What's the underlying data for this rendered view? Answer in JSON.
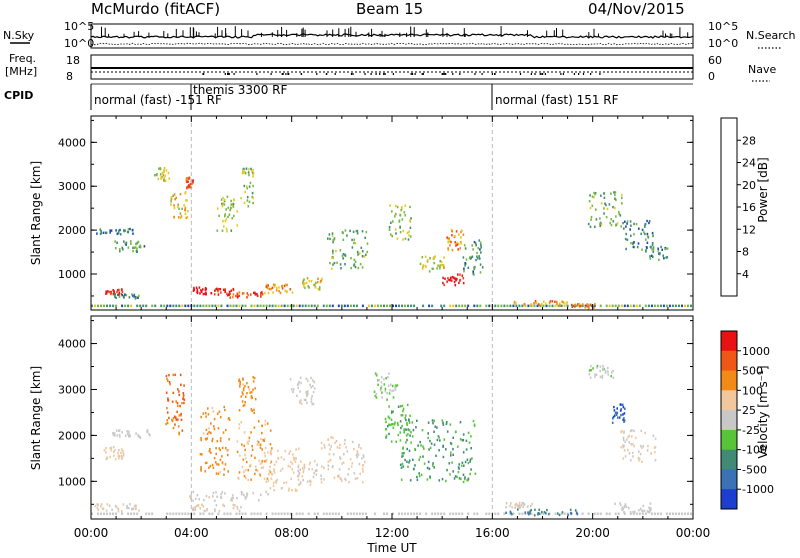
{
  "header": {
    "station": "McMurdo (fitACF)",
    "beam": "Beam 15",
    "date": "04/Nov/2015"
  },
  "noise_panel": {
    "left_label": "N.Sky",
    "right_label": "N.Search",
    "left_ticks": [
      "10^5",
      "10^0"
    ],
    "right_ticks": [
      "10^5",
      "10^0"
    ]
  },
  "freq_panel": {
    "left_label_1": "Freq.",
    "left_label_2": "[MHz]",
    "right_label": "Nave",
    "left_ticks": [
      "18",
      "8"
    ],
    "right_ticks": [
      "60",
      "0"
    ]
  },
  "cpid": {
    "label": "CPID",
    "segments": [
      {
        "name": "normal (fast) -151 RF",
        "start_h": 0,
        "end_h": 4
      },
      {
        "name": "themis 3300 RF",
        "start_h": 4,
        "end_h": 16
      },
      {
        "name": "normal (fast) 151 RF",
        "start_h": 16,
        "end_h": 24
      }
    ]
  },
  "chart_data": [
    {
      "type": "heatmap",
      "name": "power",
      "ylabel": "Slant Range [km]",
      "y_ticks": [
        1000,
        2000,
        3000,
        4000
      ],
      "ylim": [
        180,
        4600
      ],
      "colorbar": {
        "label": "Power [dB]",
        "ticks": [
          "4",
          "8",
          "12",
          "16",
          "20",
          "24",
          "28"
        ],
        "colors": [
          "#1e2bff",
          "#1d49a8",
          "#3e8e6e",
          "#76b842",
          "#e7c81e",
          "#f18a17",
          "#ef4617",
          "#e8121b"
        ],
        "range": [
          0,
          30
        ]
      },
      "patches": [
        {
          "t": 0.9,
          "r": 620,
          "w": 0.7,
          "h": 120,
          "v": 26
        },
        {
          "t": 1.4,
          "r": 520,
          "w": 1.0,
          "h": 100,
          "v": 10
        },
        {
          "t": 5.2,
          "r": 620,
          "w": 0.9,
          "h": 160,
          "v": 27
        },
        {
          "t": 4.3,
          "r": 640,
          "w": 0.6,
          "h": 160,
          "v": 29
        },
        {
          "t": 6.2,
          "r": 560,
          "w": 1.4,
          "h": 140,
          "v": 25
        },
        {
          "t": 7.5,
          "r": 700,
          "w": 1.2,
          "h": 220,
          "v": 20
        },
        {
          "t": 8.8,
          "r": 800,
          "w": 0.8,
          "h": 260,
          "v": 17
        },
        {
          "t": 14.4,
          "r": 900,
          "w": 0.9,
          "h": 260,
          "v": 28
        },
        {
          "t": 13.6,
          "r": 1250,
          "w": 1.0,
          "h": 380,
          "v": 16
        },
        {
          "t": 14.5,
          "r": 1800,
          "w": 0.7,
          "h": 500,
          "v": 20
        },
        {
          "t": 3.5,
          "r": 2600,
          "w": 0.7,
          "h": 600,
          "v": 18
        },
        {
          "t": 3.9,
          "r": 3100,
          "w": 0.3,
          "h": 250,
          "v": 24
        },
        {
          "t": 5.4,
          "r": 2400,
          "w": 0.8,
          "h": 800,
          "v": 14
        },
        {
          "t": 10.2,
          "r": 1600,
          "w": 1.6,
          "h": 900,
          "v": 12
        },
        {
          "t": 12.3,
          "r": 2200,
          "w": 0.9,
          "h": 800,
          "v": 14
        },
        {
          "t": 15.2,
          "r": 1400,
          "w": 0.8,
          "h": 800,
          "v": 10
        },
        {
          "t": 1.0,
          "r": 2000,
          "w": 1.6,
          "h": 140,
          "v": 8
        },
        {
          "t": 1.5,
          "r": 1650,
          "w": 1.2,
          "h": 250,
          "v": 11
        },
        {
          "t": 20.5,
          "r": 2500,
          "w": 1.4,
          "h": 800,
          "v": 12
        },
        {
          "t": 21.8,
          "r": 1900,
          "w": 1.2,
          "h": 700,
          "v": 8
        },
        {
          "t": 22.5,
          "r": 1500,
          "w": 1.0,
          "h": 300,
          "v": 10
        },
        {
          "t": 17.8,
          "r": 350,
          "w": 2.4,
          "h": 120,
          "v": 20
        },
        {
          "t": 19.6,
          "r": 300,
          "w": 1.0,
          "h": 100,
          "v": 21
        },
        {
          "t": 6.2,
          "r": 3000,
          "w": 0.5,
          "h": 900,
          "v": 14
        },
        {
          "t": 2.8,
          "r": 3300,
          "w": 0.6,
          "h": 300,
          "v": 16
        }
      ]
    },
    {
      "type": "heatmap",
      "name": "velocity",
      "ylabel": "Slant Range [km]",
      "xlabel": "Time UT",
      "x_ticks": [
        "00:00",
        "04:00",
        "08:00",
        "12:00",
        "16:00",
        "20:00",
        "00:00"
      ],
      "y_ticks": [
        1000,
        2000,
        3000,
        4000
      ],
      "ylim": [
        180,
        4600
      ],
      "colorbar": {
        "label": "Velocity [m s⁻¹]",
        "ticks": [
          "1000",
          "500",
          "100",
          "25",
          "-25",
          "-100",
          "-500",
          "-1000"
        ],
        "colors": [
          "#1d3fd0",
          "#3a72b5",
          "#418a76",
          "#57c43a",
          "#c8c8c8",
          "#f1c79d",
          "#f18a16",
          "#ef5716",
          "#e81212"
        ],
        "range": [
          -1200,
          1200
        ]
      },
      "patches": [
        {
          "t": 1.6,
          "r": 2050,
          "w": 1.6,
          "h": 180,
          "v": 0
        },
        {
          "t": 0.9,
          "r": 1650,
          "w": 0.8,
          "h": 300,
          "v": 200
        },
        {
          "t": 3.3,
          "r": 2700,
          "w": 0.8,
          "h": 1300,
          "v": 700
        },
        {
          "t": 4.9,
          "r": 1900,
          "w": 1.2,
          "h": 1500,
          "v": 500
        },
        {
          "t": 6.5,
          "r": 1700,
          "w": 1.4,
          "h": 1300,
          "v": 400
        },
        {
          "t": 7.6,
          "r": 1300,
          "w": 1.3,
          "h": 1000,
          "v": 250
        },
        {
          "t": 5.5,
          "r": 700,
          "w": 3.2,
          "h": 200,
          "v": 60
        },
        {
          "t": 10.0,
          "r": 1500,
          "w": 1.8,
          "h": 1000,
          "v": 150
        },
        {
          "t": 13.8,
          "r": 1700,
          "w": 3.0,
          "h": 1400,
          "v": -450
        },
        {
          "t": 12.2,
          "r": 2300,
          "w": 1.0,
          "h": 900,
          "v": -300
        },
        {
          "t": 8.6,
          "r": 1200,
          "w": 0.8,
          "h": 600,
          "v": 120
        },
        {
          "t": 21.0,
          "r": 2500,
          "w": 0.5,
          "h": 400,
          "v": -900
        },
        {
          "t": 21.8,
          "r": 1800,
          "w": 1.4,
          "h": 700,
          "v": 150
        },
        {
          "t": 20.3,
          "r": 3400,
          "w": 1.0,
          "h": 300,
          "v": -50
        },
        {
          "t": 18.0,
          "r": 350,
          "w": 3.0,
          "h": 130,
          "v": -700
        },
        {
          "t": 17.0,
          "r": 500,
          "w": 1.2,
          "h": 120,
          "v": 80
        },
        {
          "t": 1.0,
          "r": 450,
          "w": 1.8,
          "h": 160,
          "v": 100
        },
        {
          "t": 5.0,
          "r": 450,
          "w": 2.0,
          "h": 150,
          "v": 120
        },
        {
          "t": 21.6,
          "r": 450,
          "w": 1.5,
          "h": 200,
          "v": 10
        },
        {
          "t": 8.4,
          "r": 3000,
          "w": 1.0,
          "h": 600,
          "v": 20
        },
        {
          "t": 11.7,
          "r": 3100,
          "w": 1.0,
          "h": 600,
          "v": -100
        },
        {
          "t": 6.2,
          "r": 2900,
          "w": 0.7,
          "h": 800,
          "v": 500
        }
      ]
    }
  ]
}
